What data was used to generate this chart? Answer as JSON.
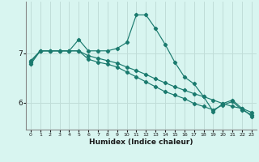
{
  "xlabel": "Humidex (Indice chaleur)",
  "bg_color": "#d8f5f0",
  "grid_color": "#c0ddd8",
  "line_color": "#1a7a6e",
  "xlim": [
    -0.5,
    23.5
  ],
  "ylim": [
    5.45,
    8.05
  ],
  "yticks": [
    6,
    7
  ],
  "xticks": [
    0,
    1,
    2,
    3,
    4,
    5,
    6,
    7,
    8,
    9,
    10,
    11,
    12,
    13,
    14,
    15,
    16,
    17,
    18,
    19,
    20,
    21,
    22,
    23
  ],
  "series1_x": [
    0,
    1,
    2,
    3,
    4,
    5,
    6,
    7,
    8,
    9,
    10,
    11,
    12,
    13,
    14,
    15,
    16,
    17,
    18,
    19,
    20,
    21,
    22,
    23
  ],
  "series1_y": [
    6.85,
    7.05,
    7.05,
    7.05,
    7.05,
    7.28,
    7.05,
    7.05,
    7.05,
    7.1,
    7.22,
    7.78,
    7.78,
    7.5,
    7.18,
    6.82,
    6.52,
    6.38,
    6.12,
    5.82,
    5.98,
    6.05,
    5.88,
    5.72
  ],
  "series2_x": [
    0,
    1,
    2,
    3,
    4,
    5,
    6,
    7,
    8,
    9,
    10,
    11,
    12,
    13,
    14,
    15,
    16,
    17,
    18,
    19,
    20,
    21,
    22,
    23
  ],
  "series2_y": [
    6.82,
    7.05,
    7.05,
    7.05,
    7.05,
    7.05,
    6.95,
    6.9,
    6.85,
    6.8,
    6.72,
    6.65,
    6.57,
    6.48,
    6.4,
    6.32,
    6.25,
    6.18,
    6.12,
    6.05,
    5.98,
    5.92,
    5.88,
    5.8
  ],
  "series3_x": [
    0,
    1,
    2,
    3,
    4,
    5,
    6,
    7,
    8,
    9,
    10,
    11,
    12,
    13,
    14,
    15,
    16,
    17,
    18,
    19,
    20,
    21,
    22,
    23
  ],
  "series3_y": [
    6.78,
    7.05,
    7.05,
    7.05,
    7.05,
    7.05,
    6.88,
    6.82,
    6.78,
    6.72,
    6.62,
    6.52,
    6.42,
    6.32,
    6.22,
    6.15,
    6.08,
    5.98,
    5.92,
    5.85,
    5.95,
    6.02,
    5.85,
    5.75
  ]
}
